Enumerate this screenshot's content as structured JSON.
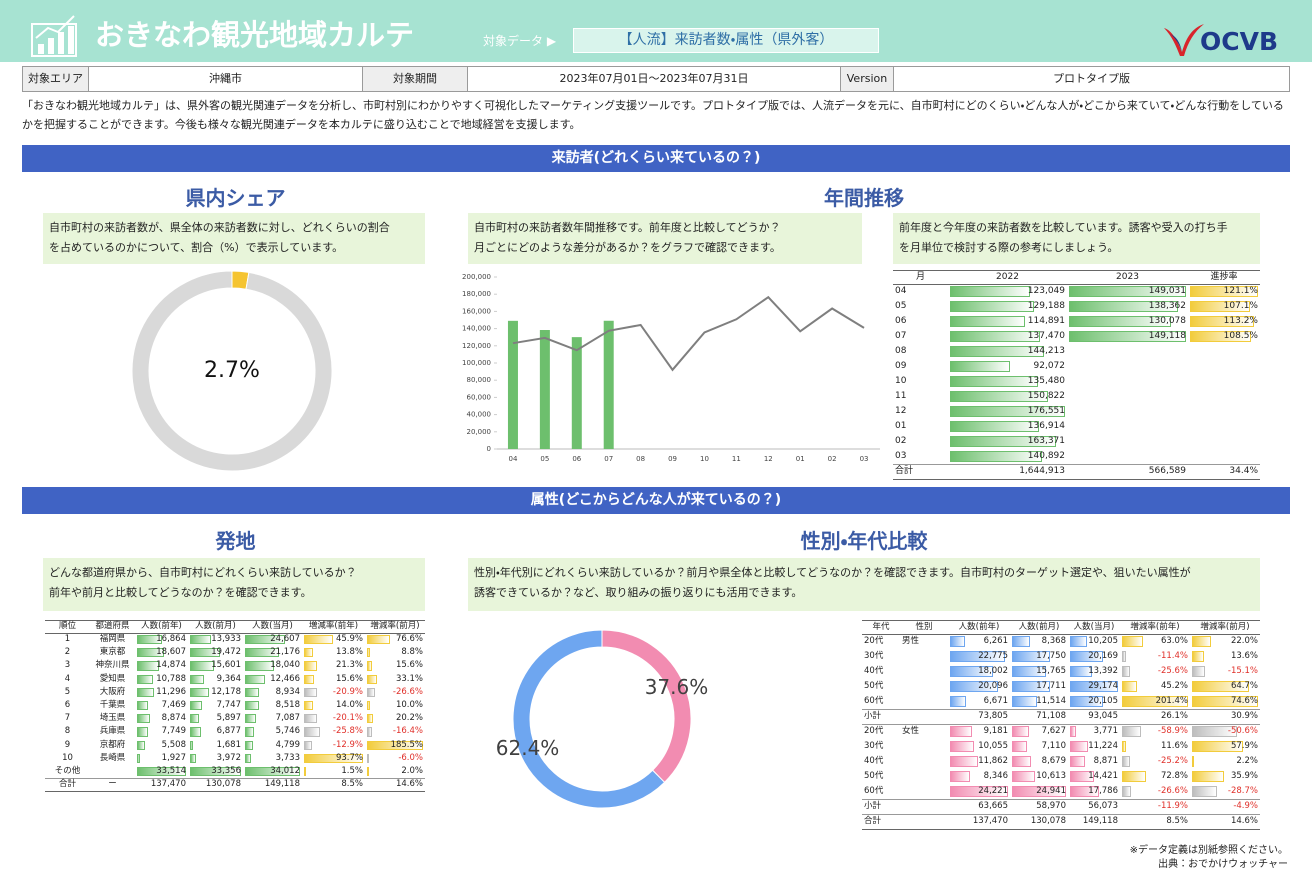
{
  "header": {
    "title": "おきなわ観光地域カルテ",
    "data_label": "対象データ ▶",
    "data_value": "【人流】来訪者数・属性（県外客）",
    "logo": "OCVB"
  },
  "info": {
    "area_label": "対象エリア",
    "area": "沖縄市",
    "period_label": "対象期間",
    "period": "2023年07月01日～2023年07月31日",
    "version_label": "Version",
    "version": "プロトタイプ版"
  },
  "description": "「おきなわ観光地域カルテ」は、県外客の観光関連データを分析し、市町村別にわかりやすく可視化したマーケティング支援ツールです。プロトタイプ版では、人流データを元に、自市町村にどのくらい・どんな人が・どこから来ていて・どんな行動をしているかを把握することができます。今後も様々な観光関連データを本カルテに盛り込むことで地域経営を支援します。",
  "section1": {
    "banner": "来訪者(どれくらい来ているの？)",
    "share_title": "県内シェア",
    "trend_title": "年間推移",
    "share_note": "自市町村の来訪者数が、県全体の来訪者数に対し、どれくらいの割合\nを占めているのかについて、割合（%）で表示しています。",
    "trend_note": "自市町村の来訪者数年間推移です。前年度と比較してどうか？\n月ごとにどのような差分があるか？をグラフで確認できます。",
    "table_note": "前年度と今年度の来訪者数を比較しています。誘客や受入の打ち手\nを月単位で検討する際の参考にしましょう。"
  },
  "monthly_table": {
    "columns": [
      "月",
      "2022",
      "2023",
      "進捗率"
    ],
    "rows": [
      [
        "04",
        "123,049",
        "149,031",
        "121.1%"
      ],
      [
        "05",
        "129,188",
        "138,362",
        "107.1%"
      ],
      [
        "06",
        "114,891",
        "130,078",
        "113.2%"
      ],
      [
        "07",
        "137,470",
        "149,118",
        "108.5%"
      ],
      [
        "08",
        "144,213",
        null,
        null
      ],
      [
        "09",
        "92,072",
        null,
        null
      ],
      [
        "10",
        "135,480",
        null,
        null
      ],
      [
        "11",
        "150,822",
        null,
        null
      ],
      [
        "12",
        "176,551",
        null,
        null
      ],
      [
        "01",
        "136,914",
        null,
        null
      ],
      [
        "02",
        "163,371",
        null,
        null
      ],
      [
        "03",
        "140,892",
        null,
        null
      ],
      [
        "合計",
        "1,644,913",
        "566,589",
        "34.4%"
      ]
    ]
  },
  "section2": {
    "banner": "属性(どこからどんな人が来ているの？)",
    "origin_title": "発地",
    "gender_title": "性別・年代比較",
    "origin_note": "どんな都道府県から、自市町村にどれくらい来訪しているか？\n前年や前月と比較してどうなのか？を確認できます。",
    "gender_note": "性別・年代別にどれくらい来訪しているか？前月や県全体と比較してどうなのか？を確認できます。自市町村のターゲット選定や、狙いたい属性が\n誘客できているか？など、取り組みの振り返りにも活用できます。"
  },
  "origin_table": {
    "columns": [
      "順位",
      "都道府県",
      "人数(前年)",
      "人数(前月)",
      "人数(当月)",
      "増減率(前年)",
      "増減率(前月)"
    ],
    "rows": [
      [
        "1",
        "福岡県",
        "16,864",
        "13,933",
        "24,607",
        "45.9%",
        "76.6%"
      ],
      [
        "2",
        "東京都",
        "18,607",
        "19,472",
        "21,176",
        "13.8%",
        "8.8%"
      ],
      [
        "3",
        "神奈川県",
        "14,874",
        "15,601",
        "18,040",
        "21.3%",
        "15.6%"
      ],
      [
        "4",
        "愛知県",
        "10,788",
        "9,364",
        "12,466",
        "15.6%",
        "33.1%"
      ],
      [
        "5",
        "大阪府",
        "11,296",
        "12,178",
        "8,934",
        "-20.9%",
        "-26.6%"
      ],
      [
        "6",
        "千葉県",
        "7,469",
        "7,747",
        "8,518",
        "14.0%",
        "10.0%"
      ],
      [
        "7",
        "埼玉県",
        "8,874",
        "5,897",
        "7,087",
        "-20.1%",
        "20.2%"
      ],
      [
        "8",
        "兵庫県",
        "7,749",
        "6,877",
        "5,746",
        "-25.8%",
        "-16.4%"
      ],
      [
        "9",
        "京都府",
        "5,508",
        "1,681",
        "4,799",
        "-12.9%",
        "185.5%"
      ],
      [
        "10",
        "長崎県",
        "1,927",
        "3,972",
        "3,733",
        "93.7%",
        "-6.0%"
      ],
      [
        "その他",
        null,
        "33,514",
        "33,356",
        "34,012",
        "1.5%",
        "2.0%"
      ],
      [
        "合計",
        "ー",
        "137,470",
        "130,078",
        "149,118",
        "8.5%",
        "14.6%"
      ]
    ]
  },
  "gender_table": {
    "columns": [
      "年代",
      "性別",
      "人数(前年)",
      "人数(前月)",
      "人数(当月)",
      "増減率(前年)",
      "増減率(前月)"
    ],
    "rows": [
      [
        "20代",
        "男性",
        "6,261",
        "8,368",
        "10,205",
        "63.0%",
        "22.0%"
      ],
      [
        "30代",
        null,
        "22,775",
        "17,750",
        "20,169",
        "-11.4%",
        "13.6%"
      ],
      [
        "40代",
        null,
        "18,002",
        "15,765",
        "13,392",
        "-25.6%",
        "-15.1%"
      ],
      [
        "50代",
        null,
        "20,096",
        "17,711",
        "29,174",
        "45.2%",
        "64.7%"
      ],
      [
        "60代",
        null,
        "6,671",
        "11,514",
        "20,105",
        "201.4%",
        "74.6%"
      ],
      [
        "小計",
        null,
        "73,805",
        "71,108",
        "93,045",
        "26.1%",
        "30.9%"
      ],
      [
        "20代",
        "女性",
        "9,181",
        "7,627",
        "3,771",
        "-58.9%",
        "-50.6%"
      ],
      [
        "30代",
        null,
        "10,055",
        "7,110",
        "11,224",
        "11.6%",
        "57.9%"
      ],
      [
        "40代",
        null,
        "11,862",
        "8,679",
        "8,871",
        "-25.2%",
        "2.2%"
      ],
      [
        "50代",
        null,
        "8,346",
        "10,613",
        "14,421",
        "72.8%",
        "35.9%"
      ],
      [
        "60代",
        null,
        "24,221",
        "24,941",
        "17,786",
        "-26.6%",
        "-28.7%"
      ],
      [
        "小計",
        null,
        "63,665",
        "58,970",
        "56,073",
        "-11.9%",
        "-4.9%"
      ],
      [
        "合計",
        null,
        "137,470",
        "130,078",
        "149,118",
        "8.5%",
        "14.6%"
      ]
    ]
  },
  "footer": {
    "note": "※データ定義は別紙参照ください。",
    "source": "出典：おでかけウォッチャー"
  },
  "chart_data": [
    {
      "type": "donut",
      "values": [
        2.7,
        97.3
      ],
      "value_labels": [
        "2.7%",
        null
      ],
      "colors": [
        "#f5c431",
        "#d9d9d9"
      ]
    },
    {
      "type": "combo",
      "categories": [
        "04",
        "05",
        "06",
        "07",
        "08",
        "09",
        "10",
        "11",
        "12",
        "01",
        "02",
        "03"
      ],
      "series": [
        {
          "type": "bar",
          "color": "#6dbf6d",
          "values": [
            149031,
            138362,
            130078,
            149118,
            null,
            null,
            null,
            null,
            null,
            null,
            null,
            null
          ]
        },
        {
          "type": "line",
          "color": "#7f7f7f",
          "values": [
            123049,
            129188,
            114891,
            137470,
            144213,
            92072,
            135480,
            150822,
            176551,
            136914,
            163371,
            140892
          ]
        }
      ],
      "ylim": [
        0,
        200000
      ],
      "yticks": [
        0,
        {
          "value": 20000,
          "label": "20,000"
        },
        {
          "value": 40000,
          "label": "40,000"
        },
        {
          "value": 60000,
          "label": "60,000"
        },
        {
          "value": 80000,
          "label": "80,000"
        },
        {
          "value": 100000,
          "label": "100,000"
        },
        {
          "value": 120000,
          "label": "120,000"
        },
        {
          "value": 140000,
          "label": "140,000"
        },
        {
          "value": 160000,
          "label": "160,000"
        },
        {
          "value": 180000,
          "label": "180,000"
        },
        {
          "value": 200000,
          "label": "200,000"
        }
      ]
    },
    {
      "type": "donut",
      "values": [
        37.6,
        62.4
      ],
      "value_labels": [
        "37.6%",
        "62.4%"
      ],
      "colors": [
        "#f28cb1",
        "#6ea6f0"
      ]
    }
  ]
}
